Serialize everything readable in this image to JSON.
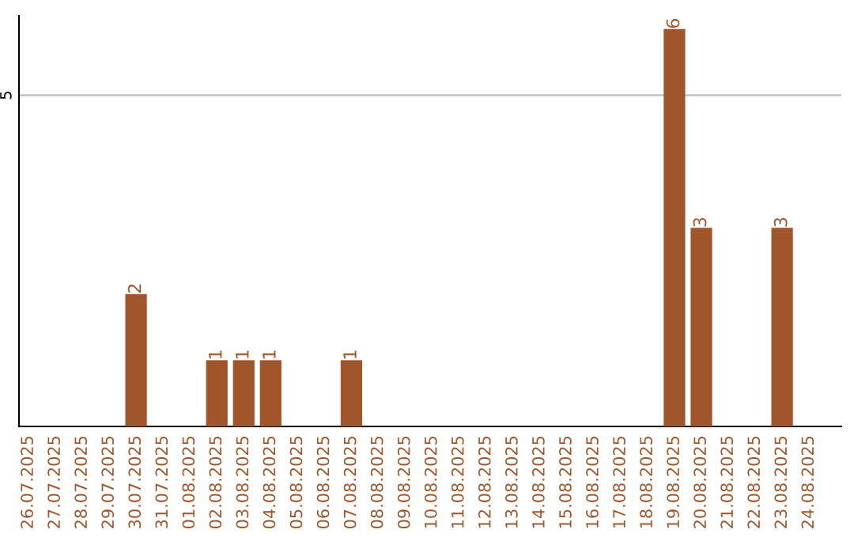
{
  "chart_data": {
    "type": "bar",
    "categories": [
      "26.07.2025",
      "27.07.2025",
      "28.07.2025",
      "29.07.2025",
      "30.07.2025",
      "31.07.2025",
      "01.08.2025",
      "02.08.2025",
      "03.08.2025",
      "04.08.2025",
      "05.08.2025",
      "06.08.2025",
      "07.08.2025",
      "08.08.2025",
      "09.08.2025",
      "10.08.2025",
      "11.08.2025",
      "12.08.2025",
      "13.08.2025",
      "14.08.2025",
      "15.08.2025",
      "16.08.2025",
      "17.08.2025",
      "18.08.2025",
      "19.08.2025",
      "20.08.2025",
      "21.08.2025",
      "22.08.2025",
      "23.08.2025",
      "24.08.2025"
    ],
    "values": [
      0,
      0,
      0,
      0,
      2,
      0,
      0,
      1,
      1,
      1,
      0,
      0,
      1,
      0,
      0,
      0,
      0,
      0,
      0,
      0,
      0,
      0,
      0,
      0,
      6,
      3,
      0,
      0,
      3,
      0
    ],
    "value_labels": [
      null,
      null,
      null,
      null,
      "2",
      null,
      null,
      "1",
      "1",
      "1",
      null,
      null,
      "1",
      null,
      null,
      null,
      null,
      null,
      null,
      null,
      null,
      null,
      null,
      null,
      "6",
      "3",
      null,
      null,
      "3",
      null
    ],
    "color": "#a0562a",
    "ylim": [
      0,
      6.2
    ],
    "yticks": [
      5
    ],
    "grid": "y"
  }
}
